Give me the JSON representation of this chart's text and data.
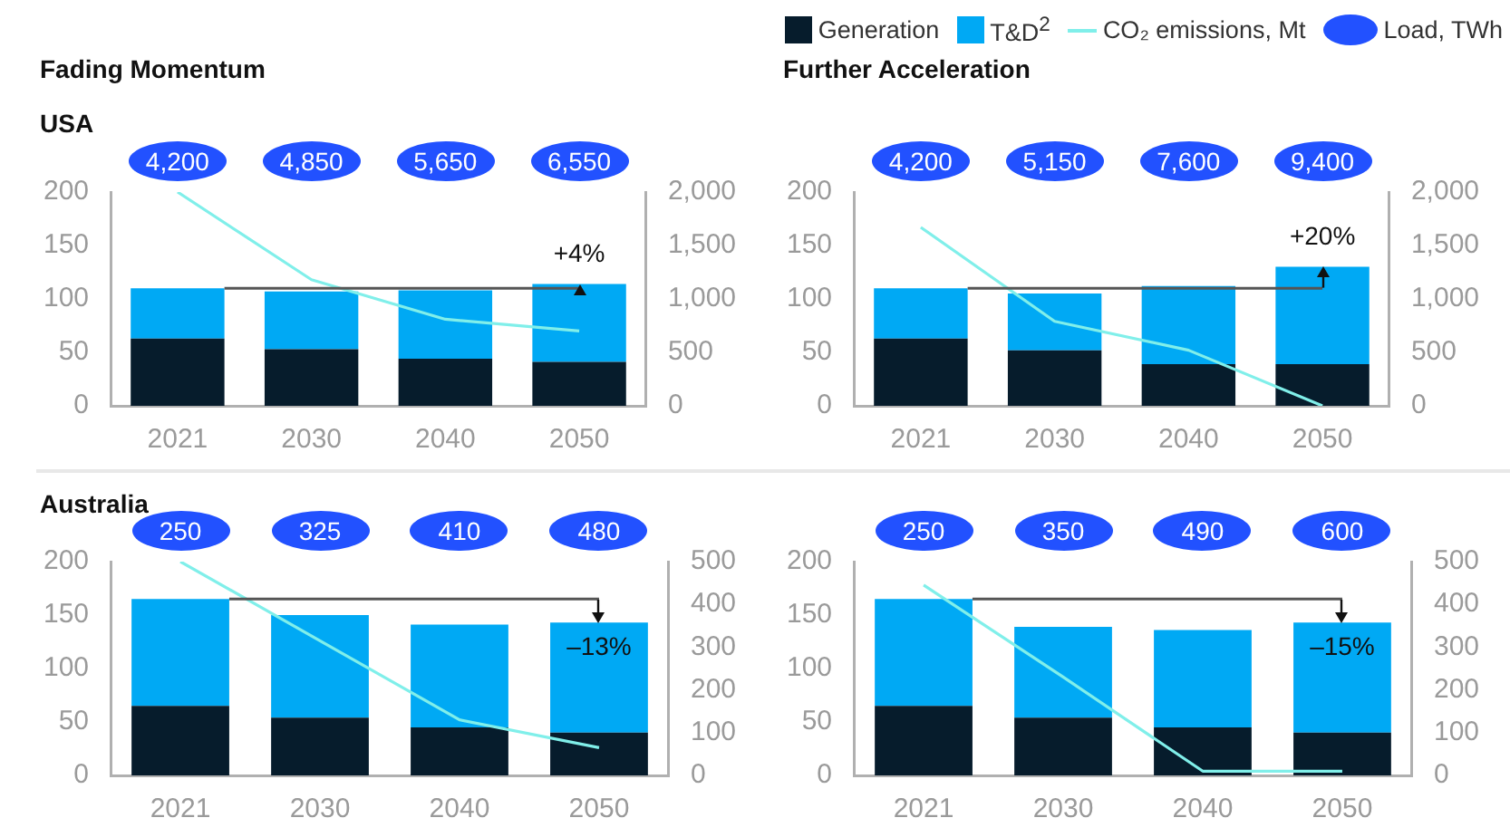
{
  "chart_data": [
    {
      "type": "bar",
      "title": "Fading Momentum",
      "subtitle": "USA",
      "categories": [
        "2021",
        "2030",
        "2040",
        "2050"
      ],
      "stacked": true,
      "series": [
        {
          "type": "bar",
          "color": "#061c2c",
          "values": [
            63,
            53,
            44,
            41
          ]
        },
        {
          "type": "bar",
          "color": "#00a9f4",
          "values": [
            47,
            54,
            64,
            73
          ]
        },
        {
          "type": "line",
          "axis": "y2",
          "color": "#80efea",
          "values": [
            2000,
            1180,
            810,
            700
          ]
        }
      ],
      "ylim": [
        0,
        200
      ],
      "yticks": [
        0,
        50,
        100,
        150,
        200
      ],
      "y2lim": [
        0,
        2000
      ],
      "y2ticks": [
        0,
        500,
        {
          "value": 1000,
          "label": "1,000"
        },
        {
          "value": 1500,
          "label": "1,500"
        },
        {
          "value": 2000,
          "label": "2,000"
        }
      ],
      "ref_lines": [
        {
          "axis": "y",
          "value": 110,
          "color": "#555555"
        }
      ],
      "annotations": [
        "+4%"
      ]
    },
    {
      "type": "other",
      "categories": [
        null,
        null,
        null,
        null
      ],
      "series": [
        {
          "type": "other",
          "color": "#2251ff",
          "values": [
            4200,
            4850,
            5650,
            6550
          ],
          "value_labels": [
            "4,200",
            "4,850",
            "5,650",
            "6,550"
          ]
        }
      ]
    },
    {
      "type": "bar",
      "title": "Further Acceleration",
      "categories": [
        "2021",
        "2030",
        "2040",
        "2050"
      ],
      "stacked": true,
      "legend": "top",
      "series": [
        {
          "name": "Generation",
          "type": "bar",
          "color": "#061c2c",
          "values": [
            63,
            52,
            39,
            39
          ]
        },
        {
          "name": "T&D$^{2}$",
          "type": "bar",
          "color": "#00a9f4",
          "values": [
            47,
            53,
            73,
            91
          ]
        },
        {
          "name": "CO₂ emissions, Mt",
          "type": "line",
          "axis": "y2",
          "color": "#80efea",
          "values": [
            1670,
            790,
            520,
            0
          ]
        }
      ],
      "ylim": [
        0,
        200
      ],
      "yticks": [
        0,
        50,
        100,
        150,
        200
      ],
      "y2lim": [
        0,
        2000
      ],
      "y2ticks": [
        0,
        500,
        {
          "value": 1000,
          "label": "1,000"
        },
        {
          "value": 1500,
          "label": "1,500"
        },
        {
          "value": 2000,
          "label": "2,000"
        }
      ],
      "ref_lines": [
        {
          "axis": "y",
          "value": 110,
          "color": "#555555"
        }
      ],
      "annotations": [
        "+20%"
      ]
    },
    {
      "type": "other",
      "categories": [
        null,
        null,
        null,
        null
      ],
      "series": [
        {
          "name": "Load, TWh",
          "type": "other",
          "color": "#2251ff",
          "values": [
            4200,
            5150,
            7600,
            9400
          ],
          "value_labels": [
            "4,200",
            "5,150",
            "7,600",
            "9,400"
          ]
        }
      ]
    },
    {
      "type": "bar",
      "subtitle": "Australia",
      "categories": [
        "2021",
        "2030",
        "2040",
        "2050"
      ],
      "stacked": true,
      "series": [
        {
          "type": "bar",
          "color": "#061c2c",
          "values": [
            65,
            54,
            45,
            40
          ]
        },
        {
          "type": "bar",
          "color": "#00a9f4",
          "values": [
            100,
            96,
            96,
            103
          ]
        },
        {
          "type": "line",
          "axis": "y2",
          "color": "#80efea",
          "values": [
            500,
            315,
            130,
            65
          ]
        }
      ],
      "ylim": [
        0,
        200
      ],
      "yticks": [
        0,
        50,
        100,
        150,
        200
      ],
      "y2lim": [
        0,
        500
      ],
      "y2ticks": [
        0,
        100,
        200,
        300,
        400,
        500
      ],
      "ref_lines": [
        {
          "axis": "y",
          "value": 165,
          "color": "#555555"
        }
      ],
      "annotations": [
        "–13%"
      ]
    },
    {
      "type": "other",
      "categories": [
        null,
        null,
        null,
        null
      ],
      "series": [
        {
          "type": "other",
          "color": "#2251ff",
          "values": [
            250,
            325,
            410,
            480
          ],
          "value_labels": [
            "250",
            "325",
            "410",
            "480"
          ]
        }
      ]
    },
    {
      "type": "bar",
      "categories": [
        "2021",
        "2030",
        "2040",
        "2050"
      ],
      "stacked": true,
      "series": [
        {
          "type": "bar",
          "color": "#061c2c",
          "values": [
            65,
            54,
            45,
            40
          ]
        },
        {
          "type": "bar",
          "color": "#00a9f4",
          "values": [
            100,
            85,
            91,
            103
          ]
        },
        {
          "type": "line",
          "axis": "y2",
          "color": "#80efea",
          "values": [
            445,
            230,
            10,
            10
          ]
        }
      ],
      "ylim": [
        0,
        200
      ],
      "yticks": [
        0,
        50,
        100,
        150,
        200
      ],
      "y2lim": [
        0,
        500
      ],
      "y2ticks": [
        0,
        100,
        200,
        300,
        400,
        500
      ],
      "ref_lines": [
        {
          "axis": "y",
          "value": 165,
          "color": "#555555"
        }
      ],
      "annotations": [
        "–15%"
      ]
    },
    {
      "type": "other",
      "categories": [
        null,
        null,
        null,
        null
      ],
      "series": [
        {
          "type": "other",
          "color": "#2251ff",
          "values": [
            250,
            350,
            490,
            600
          ],
          "value_labels": [
            "250",
            "350",
            "490",
            "600"
          ]
        }
      ]
    }
  ]
}
